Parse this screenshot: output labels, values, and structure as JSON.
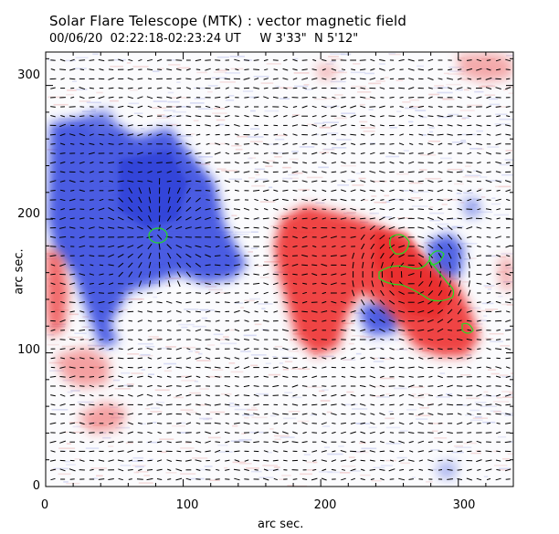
{
  "header": {
    "title": "Solar Flare Telescope (MTK) : vector magnetic field",
    "subtitle": "00/06/20  02:22:18-02:23:24 UT     W 3'33\"  N 5'12\""
  },
  "axes": {
    "xlabel": "arc sec.",
    "ylabel": "arc sec.",
    "x_ticks": [
      "0",
      "100",
      "200",
      "300"
    ],
    "y_ticks": [
      "0",
      "100",
      "200",
      "300"
    ],
    "xlim": [
      0,
      340
    ],
    "ylim": [
      0,
      325
    ]
  },
  "colors": {
    "positive_field": "#ee3333",
    "negative_field": "#3344dd",
    "contour": "#22dd22",
    "vectors": "#000000",
    "frame": "#000000"
  }
}
